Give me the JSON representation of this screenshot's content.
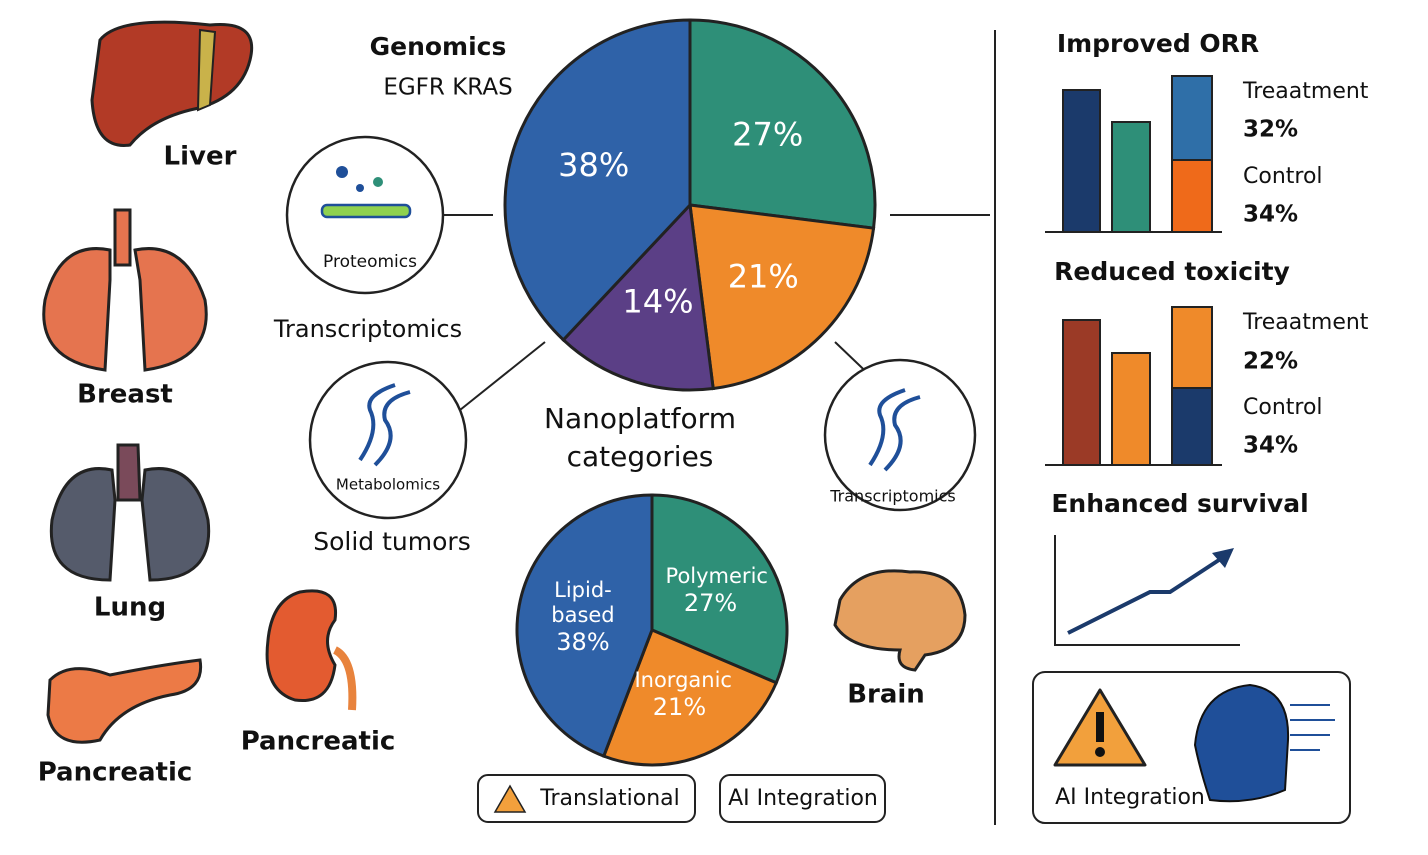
{
  "organs": [
    "Liver",
    "Breast",
    "Lung",
    "Pancreatic",
    "Pancreatic",
    "Brain"
  ],
  "omics": {
    "genomics": "Genomics",
    "genes": "EGFR  KRAS",
    "proteomics": "Proteomics",
    "transcriptomics": "Transcriptomics",
    "metabolomics": "Metabolomics",
    "solid_tumors": "Solid tumors",
    "transcriptomics_icon": "Transcriptomics"
  },
  "nanoplatform_title": "Nanoplatform categories",
  "chart_data": [
    {
      "type": "pie",
      "values": [
        27,
        21,
        14,
        38
      ],
      "value_labels": [
        "27%",
        "21%",
        "14%",
        "38%"
      ],
      "colors": [
        "#2e8f78",
        "#ef8a2a",
        "#5b3f86",
        "#2f62a8"
      ]
    },
    {
      "type": "pie",
      "categories": [
        "Polymeric",
        "Inorganic",
        "Lipid-based"
      ],
      "values": [
        27,
        21,
        38
      ],
      "value_labels": [
        "27%",
        "21%",
        "38%"
      ],
      "colors": [
        "#2e8f78",
        "#ef8a2a",
        "#2f62a8"
      ]
    }
  ],
  "buttons": [
    "Translational",
    "AI Integration"
  ],
  "outcomes": [
    {
      "title": "Improved ORR",
      "treatment_label": "Treaatment",
      "treatment_value": "32%",
      "control_label": "Control",
      "control_value": "34%"
    },
    {
      "title": "Reduced toxicity",
      "treatment_label": "Treaatment",
      "treatment_value": "22%",
      "control_label": "Control",
      "control_value": "34%"
    },
    {
      "title": "Enhanced survival"
    }
  ],
  "ai_box": "AI Integration"
}
